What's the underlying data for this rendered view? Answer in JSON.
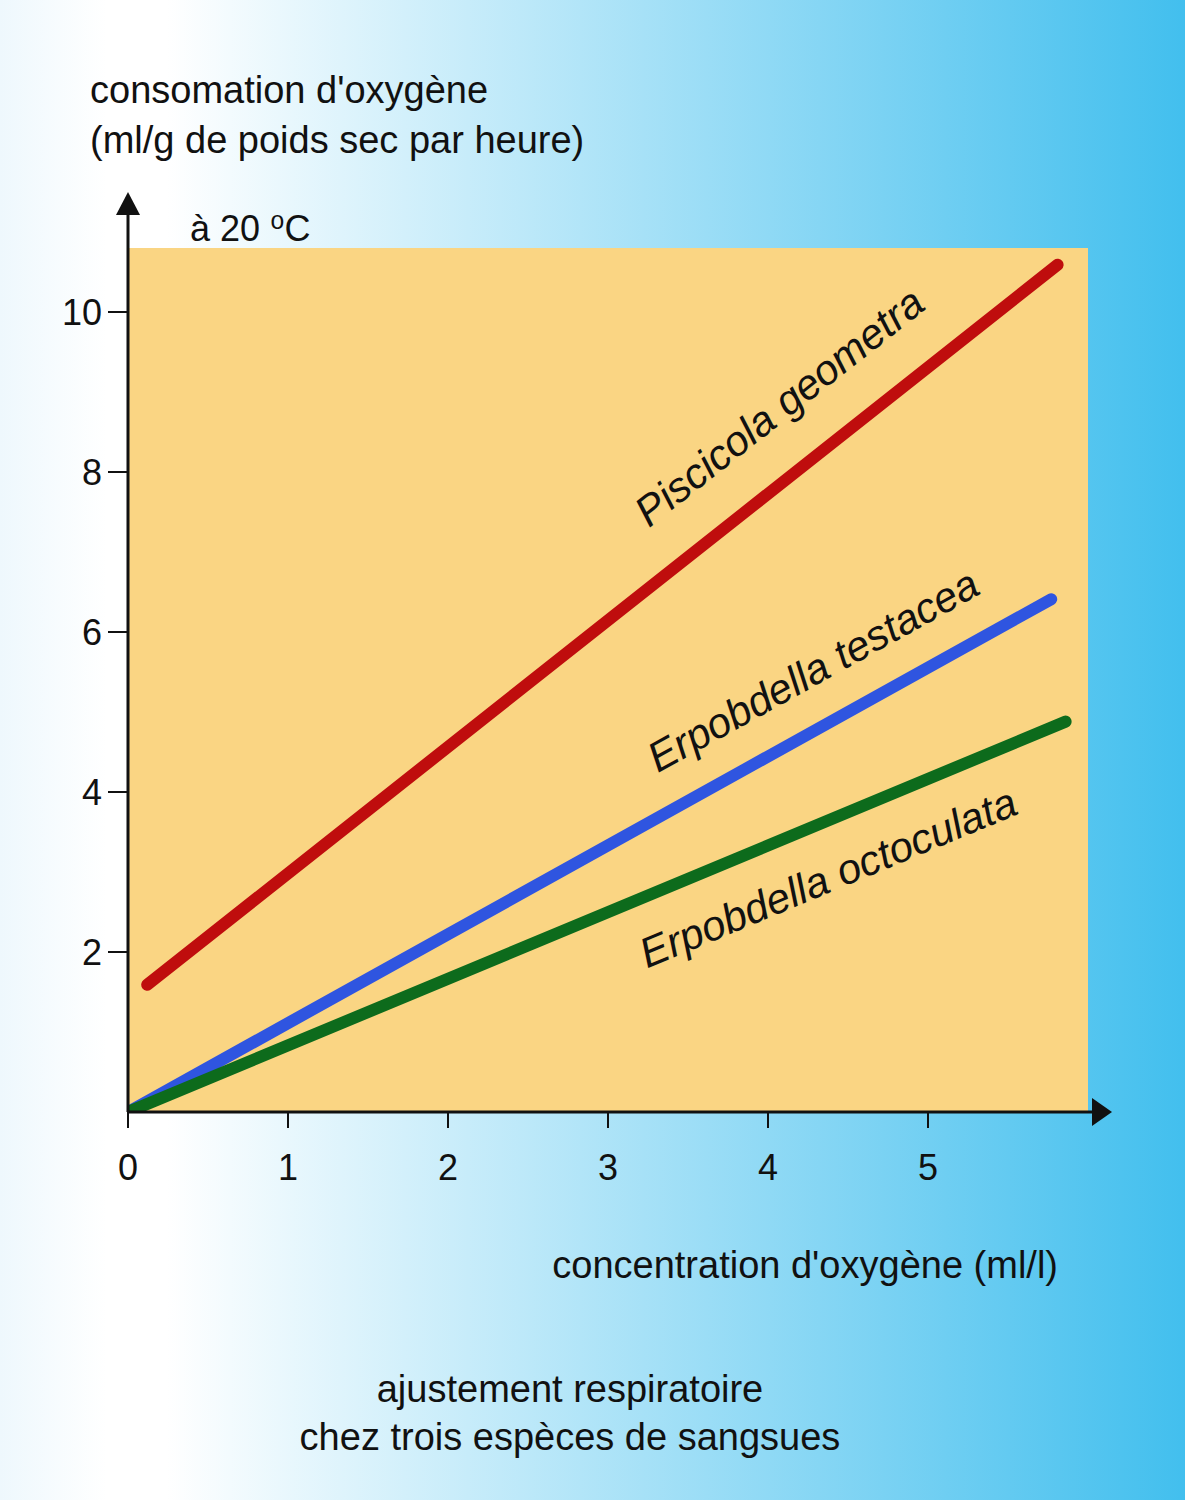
{
  "chart_data": {
    "type": "line",
    "title": [
      "ajustement respiratoire",
      "chez trois espèces de sangsues"
    ],
    "subtitle": "à 20 ⁰C",
    "x_label": "concentration d'oxygène (ml/l)",
    "y_label": [
      "consomation d'oxygène",
      "(ml/g de poids sec par heure)"
    ],
    "series": [
      {
        "name": "Piscicola geometra",
        "color": "#bf0d0d",
        "x": [
          0.12,
          5.81
        ],
        "values": [
          1.59,
          10.59
        ]
      },
      {
        "name": "Erpobdella testacea",
        "color": "#2f55e0",
        "x": [
          0,
          5.77
        ],
        "values": [
          0,
          6.41
        ]
      },
      {
        "name": "Erpobdella octoculata",
        "color": "#0d6b1c",
        "x": [
          0,
          5.86
        ],
        "values": [
          0,
          4.88
        ]
      }
    ],
    "xlim": [
      0,
      6
    ],
    "ylim": [
      0,
      10.8
    ],
    "xticks": [
      0,
      1,
      2,
      3,
      4,
      5
    ],
    "yticks": [
      2,
      4,
      6,
      8,
      10
    ],
    "grid": false
  }
}
